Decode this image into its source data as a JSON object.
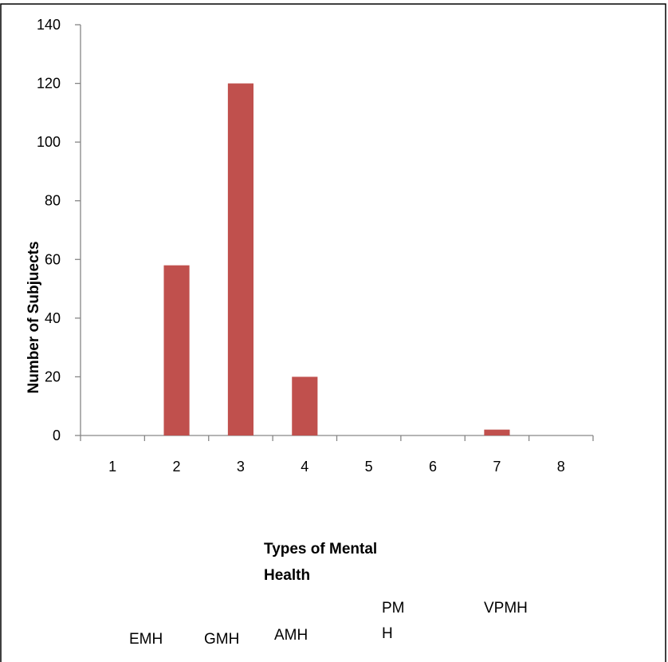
{
  "colors": {
    "bar": "#C0504D",
    "axis": "#868686",
    "border": "#000000"
  },
  "chart_data": {
    "type": "bar",
    "categories": [
      "1",
      "2",
      "3",
      "4",
      "5",
      "6",
      "7",
      "8"
    ],
    "values": [
      0,
      58,
      120,
      20,
      0,
      0,
      2,
      0
    ],
    "ylim": [
      0,
      140
    ],
    "yticks": [
      "0",
      "20",
      "40",
      "60",
      "80",
      "100",
      "120",
      "140"
    ],
    "ylabel": "Number of Subjuects",
    "xlabel_lines": [
      "Types of Mental",
      "Health"
    ],
    "grid": false,
    "legend": "none",
    "category_names": [
      {
        "lines": [
          "EMH"
        ]
      },
      {
        "lines": [
          "GMH"
        ]
      },
      {
        "lines": [
          "AMH"
        ]
      },
      {
        "lines": [
          "PM",
          "H"
        ]
      },
      {
        "lines": [
          "VPMH"
        ]
      }
    ]
  }
}
